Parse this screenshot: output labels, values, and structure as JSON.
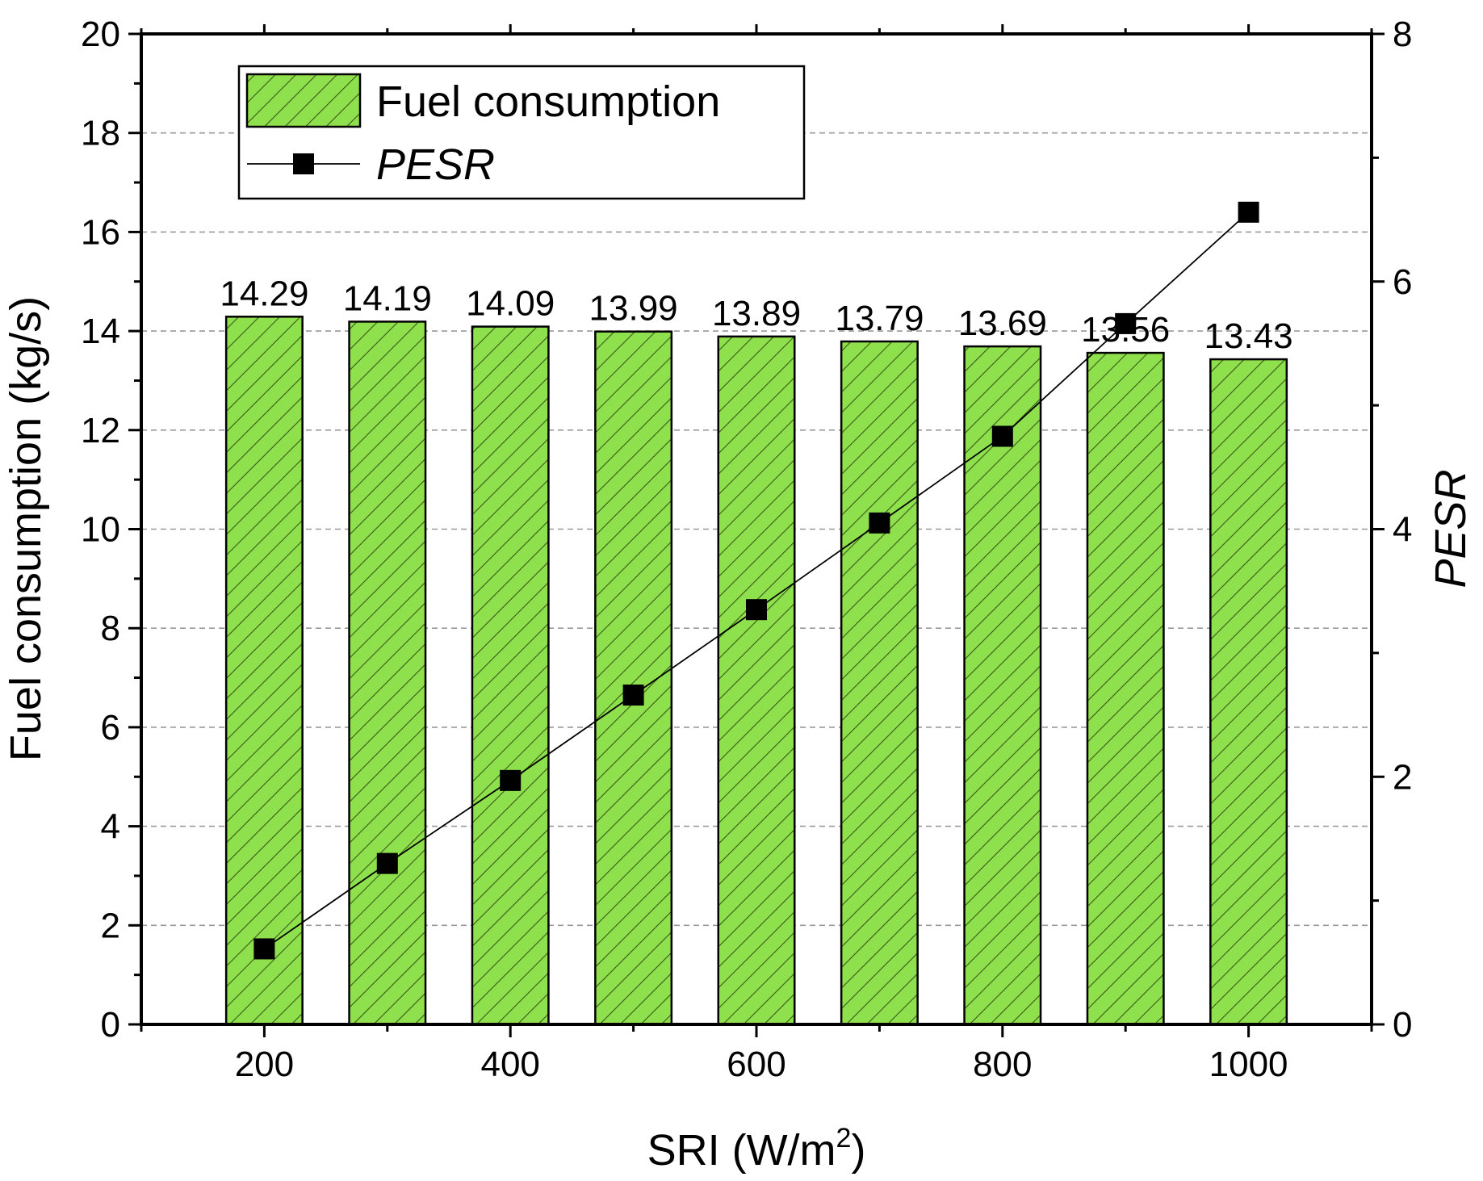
{
  "chart_data": {
    "type": "bar",
    "title": "",
    "xlabel": "SRI (W/m",
    "xlabel_sup": "2",
    "xlabel_suffix": ")",
    "ylabel": "Fuel consumption (kg/s)",
    "y2label": "PESR",
    "categories": [
      200,
      300,
      400,
      500,
      600,
      700,
      800,
      900,
      1000
    ],
    "x_ticks": [
      "200",
      "400",
      "600",
      "800",
      "1000"
    ],
    "x_tick_values": [
      200,
      400,
      600,
      800,
      1000
    ],
    "xlim": [
      100,
      1100
    ],
    "ylim": [
      0,
      20
    ],
    "y_ticks": [
      "0",
      "2",
      "4",
      "6",
      "8",
      "10",
      "12",
      "14",
      "16",
      "18",
      "20"
    ],
    "y_tick_values": [
      0,
      2,
      4,
      6,
      8,
      10,
      12,
      14,
      16,
      18,
      20
    ],
    "y2lim": [
      0,
      8
    ],
    "y2_ticks": [
      "0",
      "2",
      "4",
      "6",
      "8"
    ],
    "y2_tick_values": [
      0,
      2,
      4,
      6,
      8
    ],
    "grid": true,
    "series": [
      {
        "name": "Fuel consumption",
        "kind": "bar",
        "axis": "left",
        "values": [
          14.29,
          14.19,
          14.09,
          13.99,
          13.89,
          13.79,
          13.69,
          13.56,
          13.43
        ],
        "labels": [
          "14.29",
          "14.19",
          "14.09",
          "13.99",
          "13.89",
          "13.79",
          "13.69",
          "13.56",
          "13.43"
        ],
        "color": "#8ee04c",
        "hatch_color": "#3a5a1a"
      },
      {
        "name": "PESR",
        "kind": "line",
        "marker": "square",
        "axis": "right",
        "values": [
          0.61,
          1.3,
          1.97,
          2.66,
          3.35,
          4.05,
          4.75,
          5.66,
          6.56
        ],
        "color": "#000000"
      }
    ],
    "legend_position": "top-left"
  }
}
